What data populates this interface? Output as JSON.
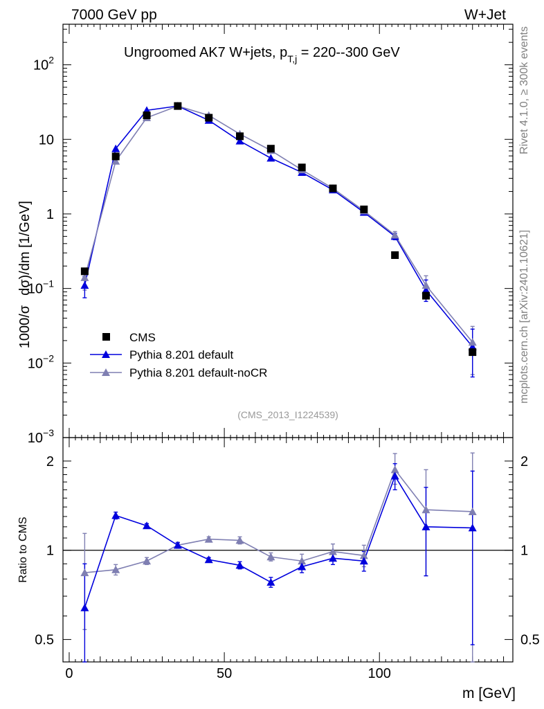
{
  "header": {
    "left": "7000 GeV pp",
    "right": "W+Jet"
  },
  "side_labels": {
    "top": "Rivet 4.1.0, ≥ 300k events",
    "bottom": "mcplots.cern.ch [arXiv:2401.10621]"
  },
  "colors": {
    "cms": "#000000",
    "default": "#0000dd",
    "nocr": "#7f7fb2",
    "watermark": "#999999"
  },
  "chart_data": [
    {
      "type": "line",
      "panel": "main",
      "title": "Ungroomed AK7 W+jets, p_T,j = 220--300 GeV",
      "title_parts": {
        "pre": "Ungroomed AK7 W+jets, p",
        "sub": "T,j",
        "post": " = 220--300 GeV"
      },
      "ylabel": "1000/σ  dσ)/dm [1/GeV]",
      "ylabel_parts": {
        "a": "1000/σ",
        "b": "dσ)/dm [1/GeV]"
      },
      "yscale": "log",
      "ylim": [
        0.001,
        350
      ],
      "xlim": [
        -2,
        143
      ],
      "yticks": [
        {
          "v": 0.001,
          "base": "10",
          "exp": "−3"
        },
        {
          "v": 0.01,
          "base": "10",
          "exp": "−2"
        },
        {
          "v": 0.1,
          "base": "10",
          "exp": "−1"
        },
        {
          "v": 1,
          "label": "1"
        },
        {
          "v": 10,
          "label": "10"
        },
        {
          "v": 100,
          "base": "10",
          "exp": "2"
        }
      ],
      "watermark": "(CMS_2013_I1224539)",
      "x": [
        5,
        15,
        25,
        35,
        45,
        55,
        65,
        75,
        85,
        95,
        105,
        115,
        130
      ],
      "series": [
        {
          "name": "CMS",
          "marker": "square",
          "values": [
            0.17,
            5.9,
            21,
            28,
            19.5,
            11,
            7.5,
            4.2,
            2.2,
            1.15,
            0.28,
            0.08,
            0.014
          ]
        },
        {
          "name": "Pythia 8.201 default",
          "marker": "triangle",
          "values": [
            0.11,
            7.5,
            24.5,
            28,
            18,
            9.5,
            5.6,
            3.6,
            2.1,
            1.05,
            0.5,
            0.095,
            0.0165
          ],
          "err_lo": [
            0.035,
            0,
            0,
            0,
            0,
            0,
            0,
            0,
            0,
            0,
            0.05,
            0.028,
            0.01
          ],
          "err_hi": [
            0.035,
            0,
            0,
            0,
            0,
            0,
            0,
            0,
            0,
            0,
            0.05,
            0.035,
            0.012
          ]
        },
        {
          "name": "Pythia 8.201 default-noCR",
          "marker": "triangle",
          "values": [
            0.14,
            5.1,
            19.5,
            28,
            21,
            11.8,
            7.1,
            3.9,
            2.2,
            1.1,
            0.52,
            0.11,
            0.019
          ],
          "err_lo": [
            0.045,
            0,
            0,
            0,
            0,
            0,
            0,
            0,
            0,
            0,
            0.05,
            0.03,
            0.012
          ],
          "err_hi": [
            0.045,
            0,
            0,
            0,
            0,
            0,
            0,
            0,
            0,
            0,
            0.06,
            0.038,
            0.012
          ]
        }
      ],
      "legend": {
        "placement": "bottom-left",
        "entries": [
          "CMS",
          "Pythia 8.201 default",
          "Pythia 8.201 default-noCR"
        ]
      }
    },
    {
      "type": "line",
      "panel": "ratio",
      "ylabel": "Ratio to CMS",
      "xlabel": "m [GeV]",
      "yscale": "log",
      "ylim": [
        0.42,
        2.4
      ],
      "xlim": [
        -2,
        143
      ],
      "yticks": [
        {
          "v": 0.5,
          "label": "0.5"
        },
        {
          "v": 1,
          "label": "1"
        },
        {
          "v": 2,
          "label": "2"
        }
      ],
      "xticks": [
        {
          "v": 0,
          "label": "0"
        },
        {
          "v": 50,
          "label": "50"
        },
        {
          "v": 100,
          "label": "100"
        }
      ],
      "reference": 1,
      "x": [
        5,
        15,
        25,
        35,
        45,
        55,
        65,
        75,
        85,
        95,
        105,
        115,
        130
      ],
      "series": [
        {
          "name": "Pythia 8.201 default",
          "values": [
            0.64,
            1.31,
            1.21,
            1.04,
            0.93,
            0.89,
            0.78,
            0.88,
            0.94,
            0.92,
            1.78,
            1.2,
            1.19
          ],
          "err_lo": [
            0.26,
            0.035,
            0.02,
            0.02,
            0.015,
            0.025,
            0.03,
            0.04,
            0.045,
            0.07,
            0.18,
            0.38,
            0.71
          ],
          "err_hi": [
            0.26,
            0.035,
            0.02,
            0.02,
            0.015,
            0.025,
            0.03,
            0.04,
            0.045,
            0.07,
            0.18,
            0.43,
            0.66
          ]
        },
        {
          "name": "Pythia 8.201 default-noCR",
          "values": [
            0.84,
            0.86,
            0.92,
            1.04,
            1.09,
            1.08,
            0.95,
            0.92,
            0.99,
            0.96,
            1.87,
            1.37,
            1.35
          ],
          "err_lo": [
            0.3,
            0.035,
            0.025,
            0.025,
            0.02,
            0.03,
            0.03,
            0.05,
            0.06,
            0.08,
            0.2,
            0.55,
            1.0
          ],
          "err_hi": [
            0.3,
            0.035,
            0.025,
            0.025,
            0.02,
            0.03,
            0.03,
            0.05,
            0.06,
            0.08,
            0.25,
            0.5,
            0.78
          ]
        }
      ]
    }
  ]
}
